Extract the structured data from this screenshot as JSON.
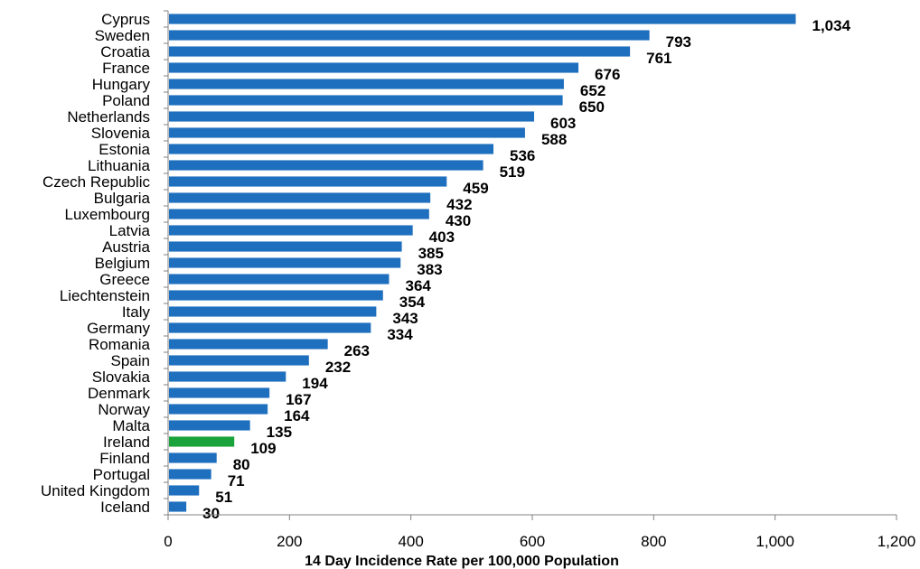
{
  "chart_data": {
    "type": "bar",
    "orientation": "horizontal",
    "title": "",
    "xlabel": "14 Day Incidence Rate per 100,000 Population",
    "ylabel": "",
    "xlim": [
      0,
      1200
    ],
    "xticks": [
      0,
      200,
      400,
      600,
      800,
      1000,
      1200
    ],
    "xtick_labels": [
      "0",
      "200",
      "400",
      "600",
      "800",
      "1,000",
      "1,200"
    ],
    "grid": false,
    "legend": "none",
    "colors": {
      "default": "#1f6fbf",
      "highlight": "#1aa33b"
    },
    "highlight_category": "Ireland",
    "categories": [
      "Cyprus",
      "Sweden",
      "Croatia",
      "France",
      "Hungary",
      "Poland",
      "Netherlands",
      "Slovenia",
      "Estonia",
      "Lithuania",
      "Czech Republic",
      "Bulgaria",
      "Luxembourg",
      "Latvia",
      "Austria",
      "Belgium",
      "Greece",
      "Liechtenstein",
      "Italy",
      "Germany",
      "Romania",
      "Spain",
      "Slovakia",
      "Denmark",
      "Norway",
      "Malta",
      "Ireland",
      "Finland",
      "Portugal",
      "United Kingdom",
      "Iceland"
    ],
    "values": [
      1034,
      793,
      761,
      676,
      652,
      650,
      603,
      588,
      536,
      519,
      459,
      432,
      430,
      403,
      385,
      383,
      364,
      354,
      343,
      334,
      263,
      232,
      194,
      167,
      164,
      135,
      109,
      80,
      71,
      51,
      30
    ],
    "value_labels": [
      "1,034",
      "793",
      "761",
      "676",
      "652",
      "650",
      "603",
      "588",
      "536",
      "519",
      "459",
      "432",
      "430",
      "403",
      "385",
      "383",
      "364",
      "354",
      "343",
      "334",
      "263",
      "232",
      "194",
      "167",
      "164",
      "135",
      "109",
      "80",
      "71",
      "51",
      "30"
    ]
  }
}
